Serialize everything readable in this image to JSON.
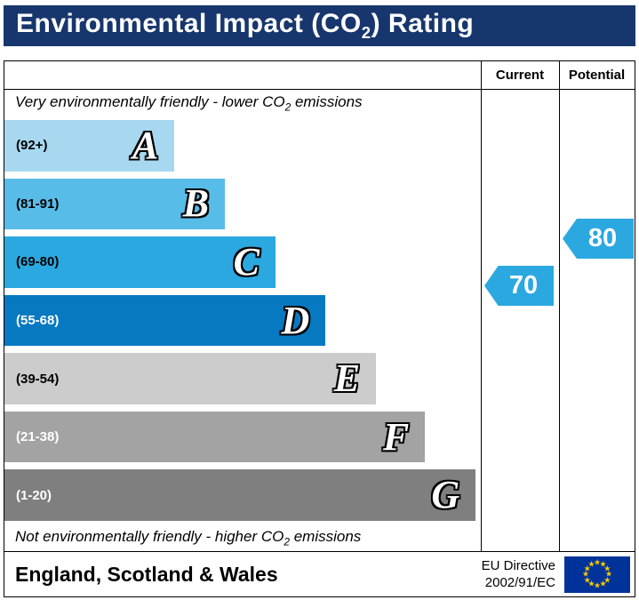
{
  "header": {
    "title_pre": "Environmental Impact (CO",
    "title_sub": "2",
    "title_post": ") Rating"
  },
  "columns": {
    "current": "Current",
    "potential": "Potential"
  },
  "notes": {
    "top": {
      "pre": "Very environmentally friendly - lower CO",
      "sub": "2",
      "post": " emissions"
    },
    "bottom": {
      "pre": "Not environmentally friendly - higher CO",
      "sub": "2",
      "post": " emissions"
    }
  },
  "bands": [
    {
      "letter": "A",
      "range": "(92+)",
      "width": "35.7%",
      "color": "#a7d8f0",
      "range_color": "#000000"
    },
    {
      "letter": "B",
      "range": "(81-91)",
      "width": "46.3%",
      "color": "#58bce8",
      "range_color": "#000000"
    },
    {
      "letter": "C",
      "range": "(69-80)",
      "width": "56.9%",
      "color": "#2ba8e0",
      "range_color": "#000000"
    },
    {
      "letter": "D",
      "range": "(55-68)",
      "width": "67.4%",
      "color": "#0679c1",
      "range_color": "#ffffff"
    },
    {
      "letter": "E",
      "range": "(39-54)",
      "width": "78.0%",
      "color": "#cccccc",
      "range_color": "#000000"
    },
    {
      "letter": "F",
      "range": "(21-38)",
      "width": "88.3%",
      "color": "#a3a3a3",
      "range_color": "#ffffff"
    },
    {
      "letter": "G",
      "range": "(1-20)",
      "width": "98.9%",
      "color": "#7f7f7f",
      "range_color": "#ffffff"
    }
  ],
  "arrows": {
    "current": "70",
    "potential": "80",
    "color": "#2ba8e0"
  },
  "footer": {
    "region": "England, Scotland & Wales",
    "directive_line1": "EU Directive",
    "directive_line2": "2002/91/EC"
  },
  "colors": {
    "header_bg": "#17366d",
    "header_text": "#ffffff",
    "flag_bg": "#003399",
    "star": "#ffcc00"
  },
  "chart_data": {
    "type": "bar",
    "title": "Environmental Impact (CO2) Rating",
    "categories": [
      "A",
      "B",
      "C",
      "D",
      "E",
      "F",
      "G"
    ],
    "band_ranges": [
      "92+",
      "81-91",
      "69-80",
      "55-68",
      "39-54",
      "21-38",
      "1-20"
    ],
    "band_colors": [
      "#a7d8f0",
      "#58bce8",
      "#2ba8e0",
      "#0679c1",
      "#cccccc",
      "#a3a3a3",
      "#7f7f7f"
    ],
    "series": [
      {
        "name": "Current",
        "values": [
          70
        ]
      },
      {
        "name": "Potential",
        "values": [
          80
        ]
      }
    ],
    "current": 70,
    "potential": 80,
    "scale": [
      1,
      100
    ],
    "top_annotation": "Very environmentally friendly - lower CO2 emissions",
    "bottom_annotation": "Not environmentally friendly - higher CO2 emissions",
    "footer_left": "England, Scotland & Wales",
    "footer_right": "EU Directive 2002/91/EC",
    "legend_position": "top-right-columns",
    "grid": false
  }
}
